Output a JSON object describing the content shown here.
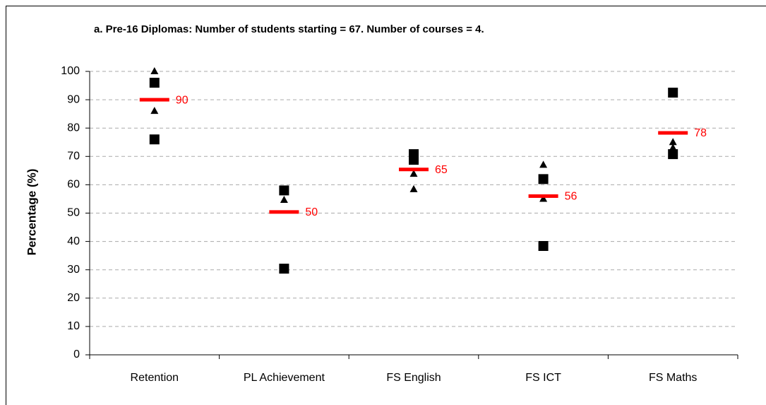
{
  "chart_data": {
    "type": "dotplot",
    "title": "a. Pre-16 Diplomas: Number of students starting = 67. Number of courses = 4.",
    "ylabel": "Percentage (%)",
    "categories": [
      "Retention",
      "PL Achievement",
      "FS English",
      "FS ICT",
      "FS Maths"
    ],
    "series": [
      {
        "marker": "square",
        "color": "#000000",
        "values": [
          96,
          58,
          70.8,
          62,
          92.5
        ]
      },
      {
        "marker": "square",
        "color": "#000000",
        "values": [
          76,
          30.4,
          68.8,
          38.4,
          70.8
        ]
      },
      {
        "marker": "triangle",
        "color": "#000000",
        "values": [
          100,
          54.6,
          63.8,
          67,
          75
        ]
      },
      {
        "marker": "triangle",
        "color": "#000000",
        "values": [
          86,
          null,
          58.4,
          55,
          73
        ]
      },
      {
        "marker": "dash",
        "color": "#ff0000",
        "values": [
          90,
          50.4,
          65.4,
          56,
          78.3
        ],
        "value_labels": [
          "90",
          "50",
          "65",
          "56",
          "78"
        ]
      }
    ],
    "ylim": [
      0,
      100
    ],
    "yticks": [
      0,
      10,
      20,
      30,
      40,
      50,
      60,
      70,
      80,
      90,
      100
    ],
    "grid": true
  }
}
